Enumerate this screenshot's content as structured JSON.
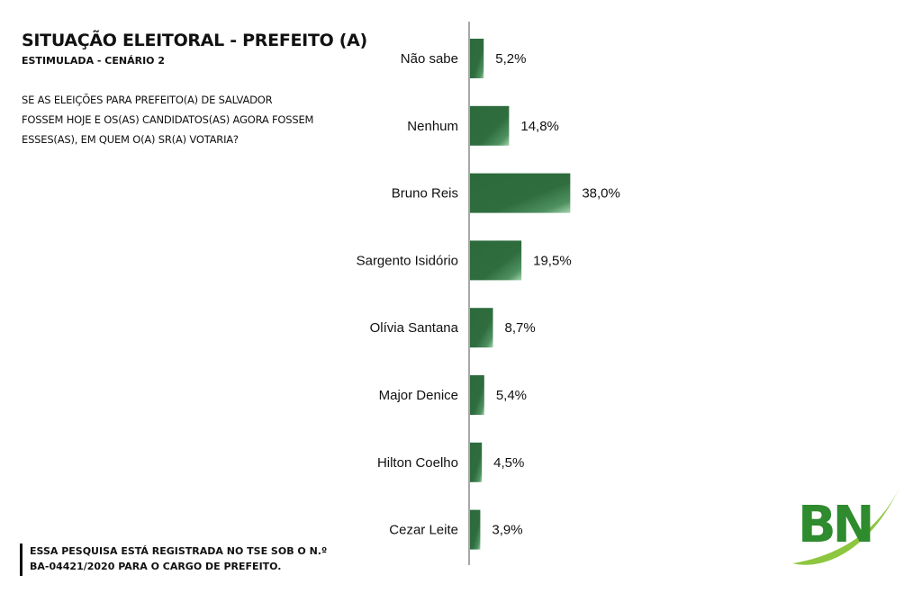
{
  "header": {
    "title": "SITUAÇÃO ELEITORAL - PREFEITO (A)",
    "subtitle": "ESTIMULADA - CENÁRIO 2"
  },
  "question": {
    "lines": [
      "SE AS ELEIÇÕES PARA PREFEITO(A) DE SALVADOR",
      "FOSSEM HOJE E OS(AS) CANDIDATOS(AS) AGORA FOSSEM",
      "ESSES(AS), EM QUEM O(A) SR(A) VOTARIA?"
    ]
  },
  "footnote": {
    "lines": [
      "ESSA PESQUISA ESTÁ REGISTRADA NO TSE SOB O N.º",
      "BA-04421/2020 PARA O CARGO DE PREFEITO."
    ]
  },
  "logo": {
    "text": "BN",
    "color": "#2e8b2e",
    "swoosh_color": "#8dc63f"
  },
  "chart_data": {
    "type": "bar",
    "orientation": "horizontal",
    "categories": [
      "Não sabe",
      "Nenhum",
      "Bruno Reis",
      "Sargento Isidório",
      "Olívia Santana",
      "Major Denice",
      "Hilton Coelho",
      "Cezar Leite"
    ],
    "values": [
      5.2,
      14.8,
      38.0,
      19.5,
      8.7,
      5.4,
      4.5,
      3.9
    ],
    "value_labels": [
      "5,2%",
      "14,8%",
      "38,0%",
      "19,5%",
      "8,7%",
      "5,4%",
      "4,5%",
      "3,9%"
    ],
    "xlim": [
      0,
      100
    ],
    "grid": false,
    "legend": "none",
    "bar_color": "#2f6b3f"
  }
}
